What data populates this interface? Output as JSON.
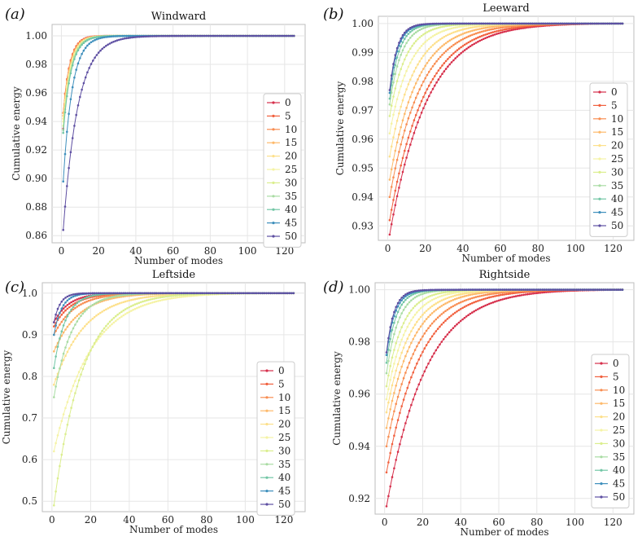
{
  "chart_data": [
    {
      "panel_label": "(a)",
      "type": "line",
      "title": "Windward",
      "xlabel": "Number of modes",
      "ylabel": "Cumulative energy",
      "xlim": [
        -5,
        131
      ],
      "ylim": [
        0.855,
        1.008
      ],
      "xticks": [
        0,
        20,
        40,
        60,
        80,
        100,
        120
      ],
      "yticks": [
        0.86,
        0.88,
        0.9,
        0.92,
        0.94,
        0.96,
        0.98,
        1.0
      ],
      "ytick_labels": [
        "0.86",
        "0.88",
        "0.90",
        "0.92",
        "0.94",
        "0.96",
        "0.98",
        "1.00"
      ],
      "legend_position": "lower-right",
      "series": [
        {
          "name": "0",
          "start": 0.935,
          "k": 0.3
        },
        {
          "name": "5",
          "start": 0.946,
          "k": 0.28
        },
        {
          "name": "10",
          "start": 0.946,
          "k": 0.27
        },
        {
          "name": "15",
          "start": 0.944,
          "k": 0.26
        },
        {
          "name": "20",
          "start": 0.942,
          "k": 0.25
        },
        {
          "name": "25",
          "start": 0.94,
          "k": 0.25
        },
        {
          "name": "30",
          "start": 0.937,
          "k": 0.24
        },
        {
          "name": "35",
          "start": 0.934,
          "k": 0.24
        },
        {
          "name": "40",
          "start": 0.932,
          "k": 0.23
        },
        {
          "name": "45",
          "start": 0.898,
          "k": 0.2
        },
        {
          "name": "50",
          "start": 0.864,
          "k": 0.12
        }
      ]
    },
    {
      "panel_label": "(b)",
      "type": "line",
      "title": "Leeward",
      "xlabel": "Number of modes",
      "ylabel": "Cumulative energy",
      "xlim": [
        -5,
        131
      ],
      "ylim": [
        0.925,
        1.0025
      ],
      "xticks": [
        0,
        20,
        40,
        60,
        80,
        100,
        120
      ],
      "yticks": [
        0.93,
        0.94,
        0.95,
        0.96,
        0.97,
        0.98,
        0.99,
        1.0
      ],
      "ytick_labels": [
        "0.93",
        "0.94",
        "0.95",
        "0.96",
        "0.97",
        "0.98",
        "0.99",
        "1.00"
      ],
      "legend_position": "lower-right",
      "series": [
        {
          "name": "0",
          "start": 0.927,
          "k": 0.042
        },
        {
          "name": "5",
          "start": 0.932,
          "k": 0.046
        },
        {
          "name": "10",
          "start": 0.94,
          "k": 0.052
        },
        {
          "name": "15",
          "start": 0.946,
          "k": 0.06
        },
        {
          "name": "20",
          "start": 0.954,
          "k": 0.07
        },
        {
          "name": "25",
          "start": 0.962,
          "k": 0.085
        },
        {
          "name": "30",
          "start": 0.968,
          "k": 0.11
        },
        {
          "name": "35",
          "start": 0.972,
          "k": 0.15
        },
        {
          "name": "40",
          "start": 0.974,
          "k": 0.19
        },
        {
          "name": "45",
          "start": 0.976,
          "k": 0.22
        },
        {
          "name": "50",
          "start": 0.977,
          "k": 0.24
        }
      ]
    },
    {
      "panel_label": "(c)",
      "type": "line",
      "title": "Leftside",
      "xlabel": "Number of modes",
      "ylabel": "Cumulative energy",
      "xlim": [
        -5,
        131
      ],
      "ylim": [
        0.475,
        1.025
      ],
      "xticks": [
        0,
        20,
        40,
        60,
        80,
        100,
        120
      ],
      "yticks": [
        0.5,
        0.6,
        0.7,
        0.8,
        0.9,
        1.0
      ],
      "ytick_labels": [
        "0.5",
        "0.6",
        "0.7",
        "0.8",
        "0.9",
        "1.0"
      ],
      "legend_position": "lower-right",
      "series": [
        {
          "name": "0",
          "start": 0.93,
          "k": 0.12
        },
        {
          "name": "5",
          "start": 0.92,
          "k": 0.1
        },
        {
          "name": "10",
          "start": 0.9,
          "k": 0.085
        },
        {
          "name": "15",
          "start": 0.86,
          "k": 0.07
        },
        {
          "name": "20",
          "start": 0.78,
          "k": 0.055
        },
        {
          "name": "25",
          "start": 0.62,
          "k": 0.045
        },
        {
          "name": "30",
          "start": 0.49,
          "k": 0.06
        },
        {
          "name": "35",
          "start": 0.75,
          "k": 0.1
        },
        {
          "name": "40",
          "start": 0.82,
          "k": 0.16
        },
        {
          "name": "45",
          "start": 0.9,
          "k": 0.24
        },
        {
          "name": "50",
          "start": 0.93,
          "k": 0.3
        }
      ]
    },
    {
      "panel_label": "(d)",
      "type": "line",
      "title": "Rightside",
      "xlabel": "Number of modes",
      "ylabel": "Cumulative energy",
      "xlim": [
        -5,
        131
      ],
      "ylim": [
        0.914,
        1.0027
      ],
      "xticks": [
        0,
        20,
        40,
        60,
        80,
        100,
        120
      ],
      "yticks": [
        0.92,
        0.94,
        0.96,
        0.98,
        1.0
      ],
      "ytick_labels": [
        "0.92",
        "0.94",
        "0.96",
        "0.98",
        "1.00"
      ],
      "legend_position": "lower-right",
      "series": [
        {
          "name": "0",
          "start": 0.917,
          "k": 0.04
        },
        {
          "name": "5",
          "start": 0.93,
          "k": 0.048
        },
        {
          "name": "10",
          "start": 0.94,
          "k": 0.055
        },
        {
          "name": "15",
          "start": 0.947,
          "k": 0.065
        },
        {
          "name": "20",
          "start": 0.953,
          "k": 0.075
        },
        {
          "name": "25",
          "start": 0.958,
          "k": 0.09
        },
        {
          "name": "30",
          "start": 0.963,
          "k": 0.11
        },
        {
          "name": "35",
          "start": 0.968,
          "k": 0.15
        },
        {
          "name": "40",
          "start": 0.972,
          "k": 0.19
        },
        {
          "name": "45",
          "start": 0.975,
          "k": 0.22
        },
        {
          "name": "50",
          "start": 0.976,
          "k": 0.25
        }
      ]
    }
  ],
  "series_colors": [
    "#d62f4b",
    "#f1603e",
    "#f88d51",
    "#fdb96a",
    "#fde08b",
    "#f5f3a5",
    "#dbee8e",
    "#a9dca3",
    "#72c6a5",
    "#3e8fbc",
    "#5e4fa2"
  ],
  "n_modes": 125
}
